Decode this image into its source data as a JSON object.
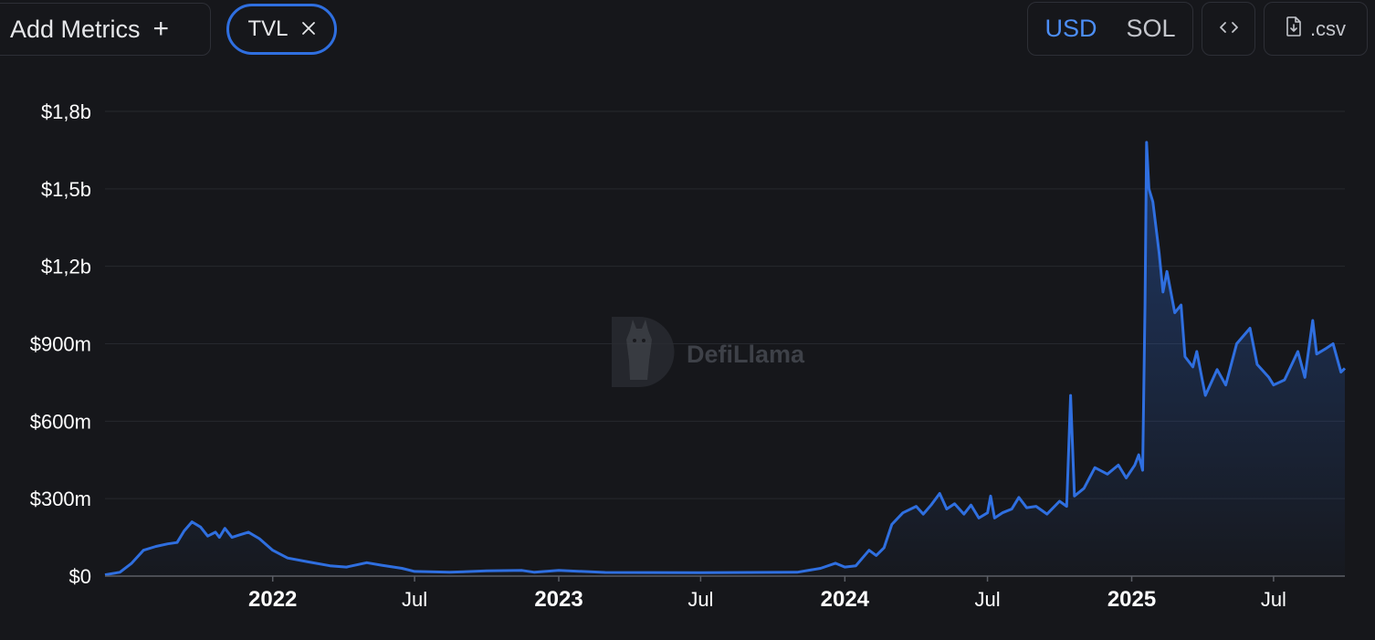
{
  "toolbar": {
    "add_metrics_label": "Add Metrics",
    "add_icon": "plus-icon",
    "metric_chip_label": "TVL",
    "remove_icon": "close-icon",
    "currency_options": [
      "USD",
      "SOL"
    ],
    "currency_selected": "USD",
    "embed_icon": "code-icon",
    "csv_icon": "file-download-icon",
    "csv_label": ".csv"
  },
  "watermark": {
    "text": "DefiLlama"
  },
  "colors": {
    "background": "#16171b",
    "line": "#2f6fe0",
    "accent": "#4c8ef7"
  },
  "chart_data": {
    "type": "area",
    "series": [
      {
        "name": "TVL",
        "unit": "USD"
      }
    ],
    "y_ticks": [
      "$0",
      "$300m",
      "$600m",
      "$900m",
      "$1,2b",
      "$1,5b",
      "$1,8b"
    ],
    "y_tick_values": [
      0,
      300,
      600,
      900,
      1200,
      1500,
      1800
    ],
    "y_unit": "millions USD",
    "ylim": [
      0,
      1800
    ],
    "x_ticks": [
      {
        "label": "2022",
        "date": "2022-01-01",
        "bold": true
      },
      {
        "label": "Jul",
        "date": "2022-07-01",
        "bold": false
      },
      {
        "label": "2023",
        "date": "2023-01-01",
        "bold": true
      },
      {
        "label": "Jul",
        "date": "2023-07-01",
        "bold": false
      },
      {
        "label": "2024",
        "date": "2024-01-01",
        "bold": true
      },
      {
        "label": "Jul",
        "date": "2024-07-01",
        "bold": false
      },
      {
        "label": "2025",
        "date": "2025-01-01",
        "bold": true
      },
      {
        "label": "Jul",
        "date": "2025-07-01",
        "bold": false
      }
    ],
    "grid": true,
    "points": [
      [
        "2021-06-01",
        5
      ],
      [
        "2021-06-20",
        15
      ],
      [
        "2021-07-05",
        50
      ],
      [
        "2021-07-20",
        100
      ],
      [
        "2021-08-05",
        115
      ],
      [
        "2021-08-20",
        125
      ],
      [
        "2021-09-01",
        130
      ],
      [
        "2021-09-10",
        175
      ],
      [
        "2021-09-20",
        210
      ],
      [
        "2021-10-01",
        190
      ],
      [
        "2021-10-10",
        155
      ],
      [
        "2021-10-20",
        170
      ],
      [
        "2021-10-25",
        150
      ],
      [
        "2021-11-01",
        185
      ],
      [
        "2021-11-10",
        150
      ],
      [
        "2021-11-20",
        160
      ],
      [
        "2021-12-01",
        170
      ],
      [
        "2021-12-15",
        145
      ],
      [
        "2022-01-01",
        100
      ],
      [
        "2022-01-20",
        70
      ],
      [
        "2022-02-15",
        55
      ],
      [
        "2022-03-15",
        40
      ],
      [
        "2022-04-05",
        35
      ],
      [
        "2022-05-01",
        52
      ],
      [
        "2022-05-20",
        42
      ],
      [
        "2022-06-15",
        30
      ],
      [
        "2022-07-01",
        18
      ],
      [
        "2022-08-15",
        15
      ],
      [
        "2022-10-01",
        20
      ],
      [
        "2022-11-15",
        22
      ],
      [
        "2022-12-01",
        15
      ],
      [
        "2023-01-01",
        22
      ],
      [
        "2023-03-01",
        14
      ],
      [
        "2023-07-01",
        13
      ],
      [
        "2023-09-01",
        14
      ],
      [
        "2023-11-01",
        15
      ],
      [
        "2023-12-01",
        30
      ],
      [
        "2023-12-20",
        50
      ],
      [
        "2024-01-01",
        35
      ],
      [
        "2024-01-15",
        40
      ],
      [
        "2024-02-01",
        100
      ],
      [
        "2024-02-10",
        80
      ],
      [
        "2024-02-20",
        110
      ],
      [
        "2024-03-01",
        200
      ],
      [
        "2024-03-15",
        245
      ],
      [
        "2024-04-01",
        270
      ],
      [
        "2024-04-10",
        240
      ],
      [
        "2024-04-20",
        275
      ],
      [
        "2024-05-01",
        320
      ],
      [
        "2024-05-10",
        260
      ],
      [
        "2024-05-20",
        280
      ],
      [
        "2024-06-01",
        240
      ],
      [
        "2024-06-10",
        275
      ],
      [
        "2024-06-20",
        225
      ],
      [
        "2024-07-01",
        245
      ],
      [
        "2024-07-05",
        310
      ],
      [
        "2024-07-10",
        225
      ],
      [
        "2024-07-20",
        245
      ],
      [
        "2024-08-01",
        260
      ],
      [
        "2024-08-10",
        305
      ],
      [
        "2024-08-20",
        265
      ],
      [
        "2024-09-01",
        270
      ],
      [
        "2024-09-15",
        240
      ],
      [
        "2024-10-01",
        290
      ],
      [
        "2024-10-10",
        270
      ],
      [
        "2024-10-15",
        700
      ],
      [
        "2024-10-20",
        310
      ],
      [
        "2024-11-01",
        340
      ],
      [
        "2024-11-15",
        420
      ],
      [
        "2024-12-01",
        395
      ],
      [
        "2024-12-15",
        430
      ],
      [
        "2024-12-25",
        380
      ],
      [
        "2025-01-05",
        430
      ],
      [
        "2025-01-10",
        470
      ],
      [
        "2025-01-15",
        410
      ],
      [
        "2025-01-18",
        1050
      ],
      [
        "2025-01-20",
        1680
      ],
      [
        "2025-01-23",
        1500
      ],
      [
        "2025-01-28",
        1450
      ],
      [
        "2025-02-05",
        1250
      ],
      [
        "2025-02-10",
        1100
      ],
      [
        "2025-02-15",
        1180
      ],
      [
        "2025-02-25",
        1020
      ],
      [
        "2025-03-05",
        1050
      ],
      [
        "2025-03-10",
        850
      ],
      [
        "2025-03-20",
        810
      ],
      [
        "2025-03-25",
        870
      ],
      [
        "2025-04-01",
        760
      ],
      [
        "2025-04-05",
        700
      ],
      [
        "2025-04-20",
        800
      ],
      [
        "2025-05-01",
        740
      ],
      [
        "2025-05-15",
        900
      ],
      [
        "2025-06-01",
        960
      ],
      [
        "2025-06-10",
        820
      ],
      [
        "2025-06-25",
        770
      ],
      [
        "2025-07-01",
        740
      ],
      [
        "2025-07-15",
        760
      ],
      [
        "2025-08-01",
        870
      ],
      [
        "2025-08-10",
        770
      ],
      [
        "2025-08-20",
        990
      ],
      [
        "2025-08-25",
        860
      ],
      [
        "2025-09-05",
        880
      ],
      [
        "2025-09-15",
        900
      ],
      [
        "2025-09-25",
        790
      ],
      [
        "2025-09-30",
        805
      ]
    ]
  }
}
